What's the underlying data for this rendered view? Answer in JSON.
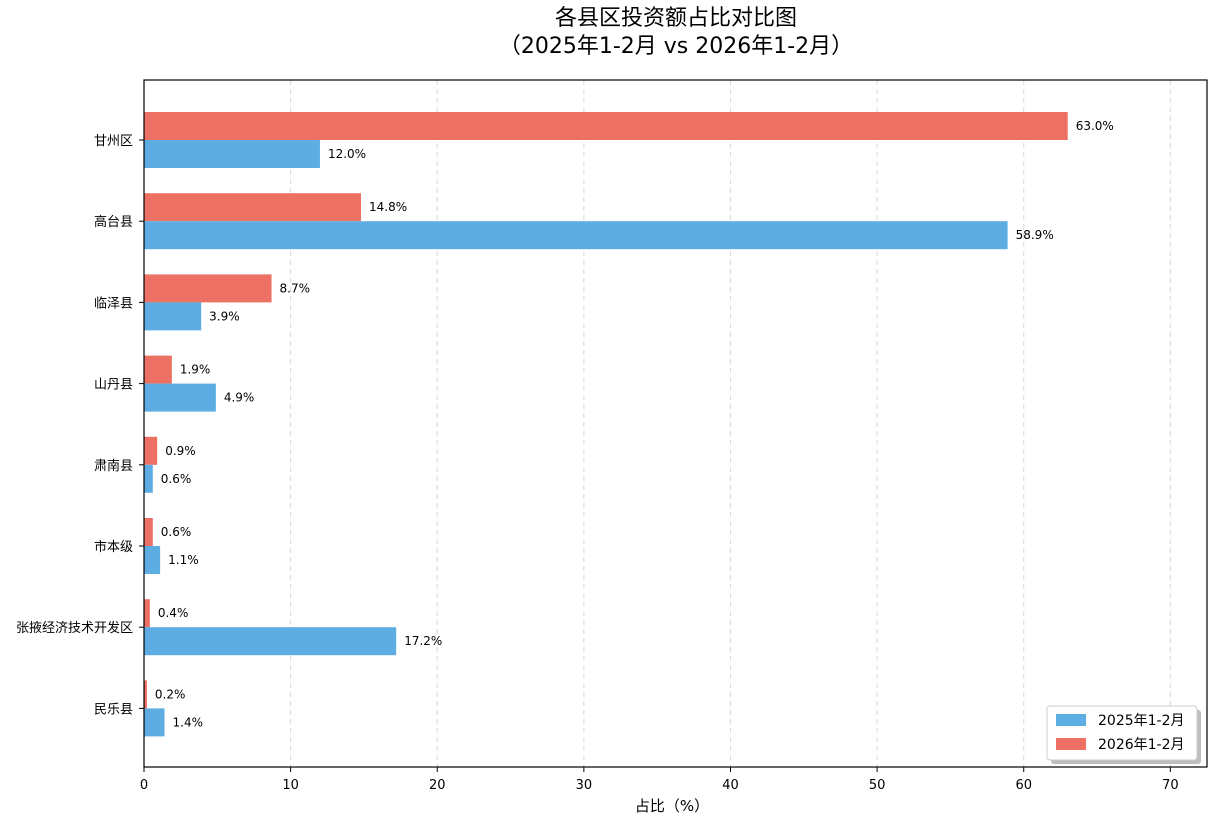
{
  "chart_data": {
    "type": "bar",
    "orientation": "horizontal",
    "title": "各县区投资额占比对比图",
    "subtitle": "（2025年1-2月 vs 2026年1-2月）",
    "xlabel": "占比（%）",
    "ylabel": "",
    "xlim": [
      0,
      72.5
    ],
    "xticks": [
      0,
      10,
      20,
      30,
      40,
      50,
      60,
      70
    ],
    "grid": "x-dashed",
    "legend_position": "bottom-right",
    "categories": [
      "甘州区",
      "高台县",
      "临泽县",
      "山丹县",
      "肃南县",
      "市本级",
      "张掖经济技术开发区",
      "民乐县"
    ],
    "series": [
      {
        "name": "2025年1-2月",
        "color": "#5DADE2",
        "values": [
          12.0,
          58.9,
          3.9,
          4.9,
          0.6,
          1.1,
          17.2,
          1.4
        ],
        "labels": [
          "12.0%",
          "58.9%",
          "3.9%",
          "4.9%",
          "0.6%",
          "1.1%",
          "17.2%",
          "1.4%"
        ]
      },
      {
        "name": "2026年1-2月",
        "color": "#EC7063",
        "values": [
          63.0,
          14.8,
          8.7,
          1.9,
          0.9,
          0.6,
          0.4,
          0.2
        ],
        "labels": [
          "63.0%",
          "14.8%",
          "8.7%",
          "1.9%",
          "0.9%",
          "0.6%",
          "0.4%",
          "0.2%"
        ]
      }
    ]
  }
}
